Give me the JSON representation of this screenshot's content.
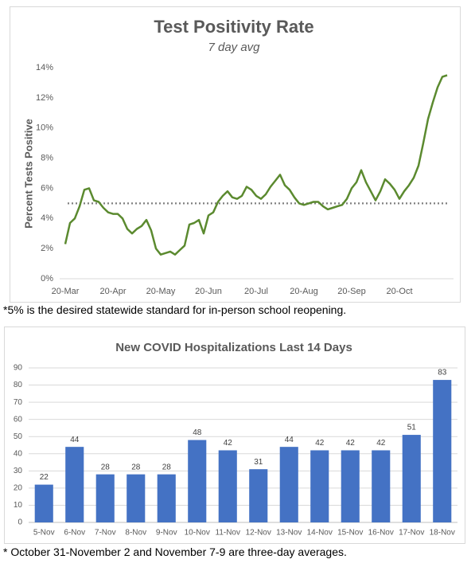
{
  "chart_data": [
    {
      "type": "line",
      "title": "Test Positivity Rate",
      "subtitle": "7 day avg",
      "y_label": "Percent Tests Positive",
      "categories": [
        "20-Mar",
        null,
        null,
        null,
        null,
        null,
        null,
        null,
        null,
        null,
        "20-Apr",
        null,
        null,
        null,
        null,
        null,
        null,
        null,
        null,
        null,
        "20-May",
        null,
        null,
        null,
        null,
        null,
        null,
        null,
        null,
        null,
        "20-Jun",
        null,
        null,
        null,
        null,
        null,
        null,
        null,
        null,
        null,
        "20-Jul",
        null,
        null,
        null,
        null,
        null,
        null,
        null,
        null,
        null,
        "20-Aug",
        null,
        null,
        null,
        null,
        null,
        null,
        null,
        null,
        null,
        "20-Sep",
        null,
        null,
        null,
        null,
        null,
        null,
        null,
        null,
        null,
        "20-Oct",
        null,
        null,
        null,
        null,
        null,
        null,
        null,
        null,
        null,
        null
      ],
      "series": [
        {
          "name": "Test Positivity Rate",
          "color": "#5b8a2f",
          "values": [
            2.3,
            3.7,
            4.0,
            4.8,
            5.9,
            6.0,
            5.2,
            5.1,
            4.7,
            4.4,
            4.3,
            4.3,
            4.0,
            3.3,
            3.0,
            3.3,
            3.5,
            3.9,
            3.2,
            2.0,
            1.6,
            1.7,
            1.8,
            1.6,
            1.9,
            2.2,
            3.6,
            3.7,
            3.9,
            3.0,
            4.2,
            4.4,
            5.1,
            5.5,
            5.8,
            5.4,
            5.3,
            5.5,
            6.1,
            5.9,
            5.5,
            5.3,
            5.6,
            6.1,
            6.5,
            6.9,
            6.2,
            5.9,
            5.4,
            5.0,
            4.9,
            5.0,
            5.1,
            5.1,
            4.8,
            4.6,
            4.7,
            4.8,
            4.9,
            5.3,
            6.0,
            6.4,
            7.2,
            6.4,
            5.8,
            5.2,
            5.8,
            6.6,
            6.3,
            5.9,
            5.3,
            5.8,
            6.2,
            6.7,
            7.5,
            9.0,
            10.6,
            11.7,
            12.7,
            13.4,
            13.5
          ]
        }
      ],
      "reference_line": {
        "value": 5,
        "color": "#7f7f7f"
      },
      "ylim": [
        0,
        14
      ],
      "yticks": [
        {
          "value": 0,
          "label": "0%"
        },
        {
          "value": 2,
          "label": "2%"
        },
        {
          "value": 4,
          "label": "4%"
        },
        {
          "value": 6,
          "label": "6%"
        },
        {
          "value": 8,
          "label": "8%"
        },
        {
          "value": 10,
          "label": "10%"
        },
        {
          "value": 12,
          "label": "12%"
        },
        {
          "value": 14,
          "label": "14%"
        }
      ],
      "grid": false,
      "note": "*5% is the desired statewide standard for in-person school reopening."
    },
    {
      "type": "bar",
      "title": "New COVID Hospitalizations Last 14 Days",
      "categories": [
        "5-Nov",
        "6-Nov",
        "7-Nov",
        "8-Nov",
        "9-Nov",
        "10-Nov",
        "11-Nov",
        "12-Nov",
        "13-Nov",
        "14-Nov",
        "15-Nov",
        "16-Nov",
        "17-Nov",
        "18-Nov"
      ],
      "values": [
        22,
        44,
        28,
        28,
        28,
        48,
        42,
        31,
        44,
        42,
        42,
        42,
        51,
        83
      ],
      "color": "#4472c4",
      "ylim": [
        0,
        90
      ],
      "yticks": [
        0,
        10,
        20,
        30,
        40,
        50,
        60,
        70,
        80,
        90
      ],
      "grid": true,
      "note": "* October 31-November 2 and November 7-9 are three-day averages."
    }
  ]
}
